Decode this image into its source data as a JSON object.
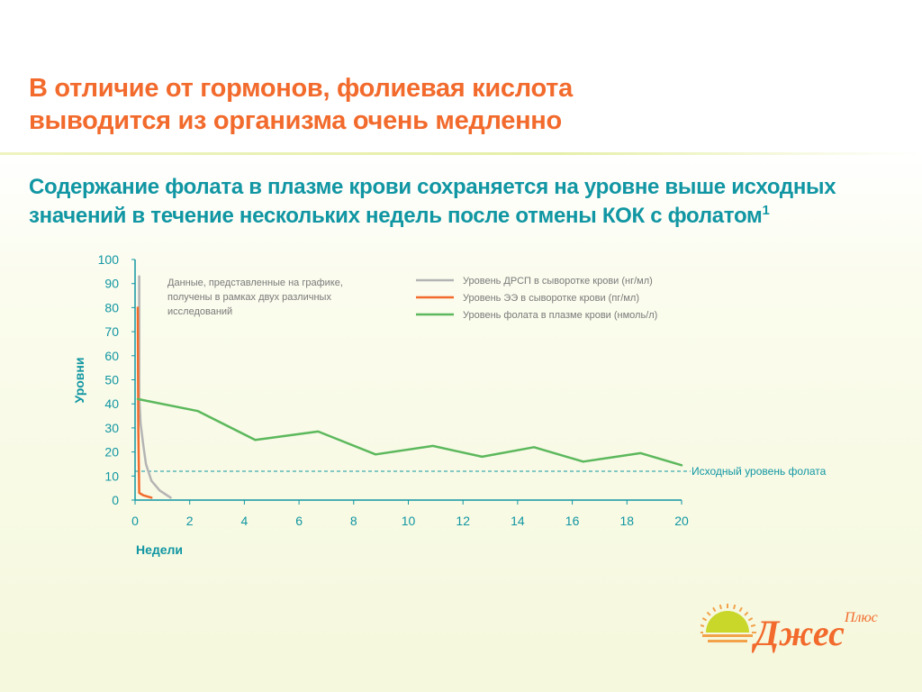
{
  "header": {
    "title_line1": "В отличие от гормонов, фолиевая кислота",
    "title_line2": "выводится из организма очень медленно",
    "subtitle_line1": "Содержание фолата в плазме крови сохраняется на уровне выше исходных",
    "subtitle_line2": "значений в течение нескольких недель после отмены КОК с фолатом",
    "subtitle_sup": "1"
  },
  "chart_data": {
    "type": "line",
    "title": "",
    "xlabel": "Недели",
    "ylabel": "Уровни",
    "xlim": [
      0,
      20
    ],
    "ylim": [
      0,
      100
    ],
    "x_ticks": [
      "0",
      "2",
      "4",
      "6",
      "8",
      "10",
      "12",
      "14",
      "16",
      "18",
      "20"
    ],
    "y_ticks": [
      "0",
      "10",
      "20",
      "30",
      "40",
      "50",
      "60",
      "70",
      "80",
      "90",
      "100"
    ],
    "grid": false,
    "legend_position": "top-right",
    "note": "Данные, представленные на графике, получены в рамках двух различных исследований",
    "note_lines": [
      "Данные, представленные на графике,",
      "получены в рамках двух различных",
      "исследований"
    ],
    "series": [
      {
        "name": "Уровень ДРСП в сыворотке крови (нг/мл)",
        "color": "#b4b4b4",
        "x": [
          0.15,
          0.15,
          0.2,
          0.3,
          0.4,
          0.6,
          0.9,
          1.3
        ],
        "y": [
          93,
          43,
          32,
          23,
          15,
          8,
          4,
          1
        ]
      },
      {
        "name": "Уровень ЭЭ в сыворотке крови (пг/мл)",
        "color": "#f26a2c",
        "x": [
          0.1,
          0.12,
          0.15,
          0.3,
          0.6
        ],
        "y": [
          80,
          30,
          3,
          2,
          1
        ]
      },
      {
        "name": "Уровень фолата в плазме крови (нмоль/л)",
        "color": "#5cb85c",
        "x": [
          0.1,
          2.3,
          4.4,
          6.7,
          8.8,
          10.9,
          12.7,
          14.6,
          16.4,
          18.5,
          20
        ],
        "y": [
          42,
          37,
          25,
          28.5,
          19,
          22.5,
          18,
          22,
          16,
          19.5,
          14.5
        ]
      }
    ],
    "baseline": {
      "label": "Исходный уровень фолата",
      "value": 12,
      "color": "#1196a3"
    }
  },
  "logo": {
    "text": "Джес",
    "suffix": "Плюс",
    "colors": {
      "sun": "#c9d62a",
      "rays": "#f2a24a",
      "text": "#f26a2c"
    }
  }
}
